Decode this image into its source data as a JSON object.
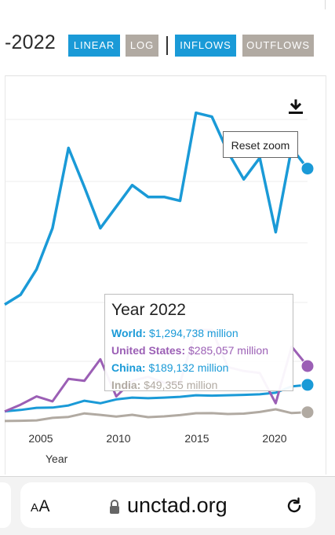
{
  "page": {
    "title_fragment": "-2022"
  },
  "toolbar": {
    "linear_label": "LINEAR",
    "log_label": "LOG",
    "inflows_label": "INFLOWS",
    "outflows_label": "OUTFLOWS"
  },
  "chart_controls": {
    "reset_zoom_label": "Reset zoom",
    "download_icon": "download-icon"
  },
  "chart_data": {
    "type": "line",
    "xlabel": "Year",
    "x_ticks": [
      "2005",
      "2010",
      "2015",
      "2020"
    ],
    "xlim": [
      2003,
      2022
    ],
    "grid": true,
    "x": [
      2003,
      2004,
      2005,
      2006,
      2007,
      2008,
      2009,
      2010,
      2011,
      2012,
      2013,
      2014,
      2015,
      2016,
      2017,
      2018,
      2019,
      2020,
      2021,
      2022
    ],
    "series": [
      {
        "name": "World",
        "color": "#1a9ad7",
        "values": [
          600000,
          650000,
          780000,
          990000,
          1400000,
          1200000,
          990000,
          1100000,
          1210000,
          1150000,
          1150000,
          1130000,
          1580000,
          1560000,
          1380000,
          1240000,
          1350000,
          970000,
          1400000,
          1294738
        ]
      },
      {
        "name": "United States",
        "color": "#9b5fb5",
        "values": [
          53000,
          88000,
          130000,
          105000,
          220000,
          210000,
          320000,
          130000,
          210000,
          230000,
          200000,
          200000,
          470000,
          470000,
          280000,
          260000,
          250000,
          95000,
          385000,
          285057
        ]
      },
      {
        "name": "China",
        "color": "#1a9ad7",
        "values": [
          54000,
          61000,
          72000,
          73000,
          84000,
          108000,
          95000,
          115000,
          124000,
          121000,
          124000,
          128000,
          136000,
          134000,
          136000,
          138000,
          141000,
          149000,
          181000,
          189132
        ]
      },
      {
        "name": "India",
        "color": "#b1aaa2",
        "values": [
          4300,
          5800,
          7600,
          20300,
          25300,
          43400,
          35600,
          27400,
          36200,
          24200,
          28200,
          34600,
          44100,
          44500,
          40000,
          42200,
          50600,
          64100,
          44800,
          49355
        ]
      }
    ],
    "tooltip": {
      "title": "Year 2022",
      "rows": [
        {
          "label": "World:",
          "value": "$1,294,738 million",
          "color": "#1a9ad7"
        },
        {
          "label": "United States:",
          "value": "$285,057 million",
          "color": "#9b5fb5"
        },
        {
          "label": "China:",
          "value": "$189,132 million",
          "color": "#1a9ad7"
        },
        {
          "label": "India:",
          "value": "$49,355 million",
          "color": "#b1aaa2"
        }
      ]
    }
  },
  "browser": {
    "aa_label_big": "A",
    "aa_label_small": "A",
    "url": "unctad.org"
  }
}
